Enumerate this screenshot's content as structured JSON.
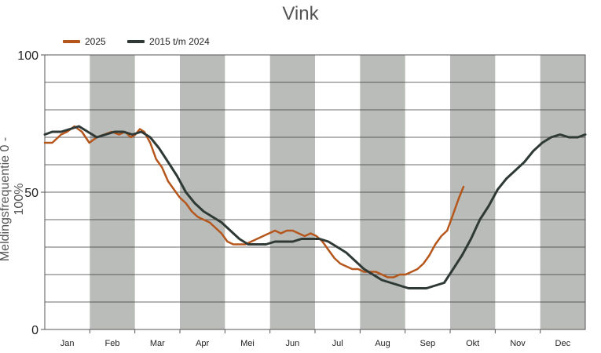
{
  "chart_data": {
    "type": "line",
    "title": "Vink",
    "ylabel": "Meldingsfrequentie 0 - 100%",
    "xlabel": "",
    "ylim": [
      0,
      100
    ],
    "yticks": [
      0,
      50,
      100
    ],
    "months": [
      "Jan",
      "Feb",
      "Mar",
      "Apr",
      "Mei",
      "Jun",
      "Jul",
      "Aug",
      "Sep",
      "Okt",
      "Nov",
      "Dec"
    ],
    "x_unit": "day of year",
    "shaded_months": [
      "Feb",
      "Apr",
      "Jun",
      "Aug",
      "Okt",
      "Dec"
    ],
    "grid": true,
    "legend_position": "top-left",
    "series": [
      {
        "name": "2025",
        "color": "#b5561c",
        "x": [
          1,
          6,
          12,
          16,
          21,
          26,
          31,
          36,
          41,
          46,
          51,
          55,
          59,
          62,
          65,
          68,
          72,
          76,
          80,
          84,
          88,
          92,
          96,
          100,
          104,
          108,
          112,
          116,
          120,
          124,
          128,
          132,
          136,
          140,
          144,
          148,
          152,
          156,
          160,
          164,
          168,
          172,
          176,
          180,
          184,
          188,
          192,
          196,
          200,
          204,
          208,
          212,
          216,
          220,
          224,
          228,
          232,
          236,
          240,
          244,
          248,
          252,
          256,
          260,
          264,
          268,
          272,
          276,
          280,
          283
        ],
        "y": [
          68,
          68,
          71,
          72,
          74,
          72,
          68,
          70,
          71,
          72,
          71,
          72,
          70,
          71,
          73,
          72,
          68,
          62,
          59,
          54,
          51,
          48,
          46,
          43,
          41,
          40,
          39,
          37,
          35,
          32,
          31,
          31,
          31,
          32,
          33,
          34,
          35,
          36,
          35,
          36,
          36,
          35,
          34,
          35,
          34,
          32,
          29,
          26,
          24,
          23,
          22,
          22,
          21,
          21,
          21,
          20,
          19,
          19,
          20,
          20,
          21,
          22,
          24,
          27,
          31,
          34,
          36,
          42,
          48,
          52
        ]
      },
      {
        "name": "2015 t/m 2024",
        "color": "#2f3a37",
        "x": [
          1,
          6,
          12,
          18,
          24,
          30,
          36,
          42,
          48,
          54,
          60,
          66,
          72,
          78,
          84,
          90,
          96,
          102,
          108,
          114,
          120,
          126,
          132,
          138,
          144,
          150,
          156,
          162,
          168,
          174,
          180,
          186,
          192,
          198,
          204,
          210,
          216,
          222,
          228,
          234,
          240,
          246,
          252,
          258,
          264,
          270,
          276,
          282,
          288,
          294,
          300,
          306,
          312,
          318,
          324,
          330,
          336,
          342,
          348,
          354,
          360,
          365
        ],
        "y": [
          71,
          72,
          72,
          73,
          74,
          72,
          70,
          71,
          72,
          72,
          71,
          72,
          70,
          66,
          61,
          56,
          50,
          46,
          43,
          41,
          39,
          36,
          33,
          31,
          31,
          31,
          32,
          32,
          32,
          33,
          33,
          33,
          32,
          30,
          28,
          25,
          22,
          20,
          18,
          17,
          16,
          15,
          15,
          15,
          16,
          17,
          22,
          27,
          33,
          40,
          45,
          51,
          55,
          58,
          61,
          65,
          68,
          70,
          71,
          70,
          70,
          71
        ]
      }
    ]
  }
}
